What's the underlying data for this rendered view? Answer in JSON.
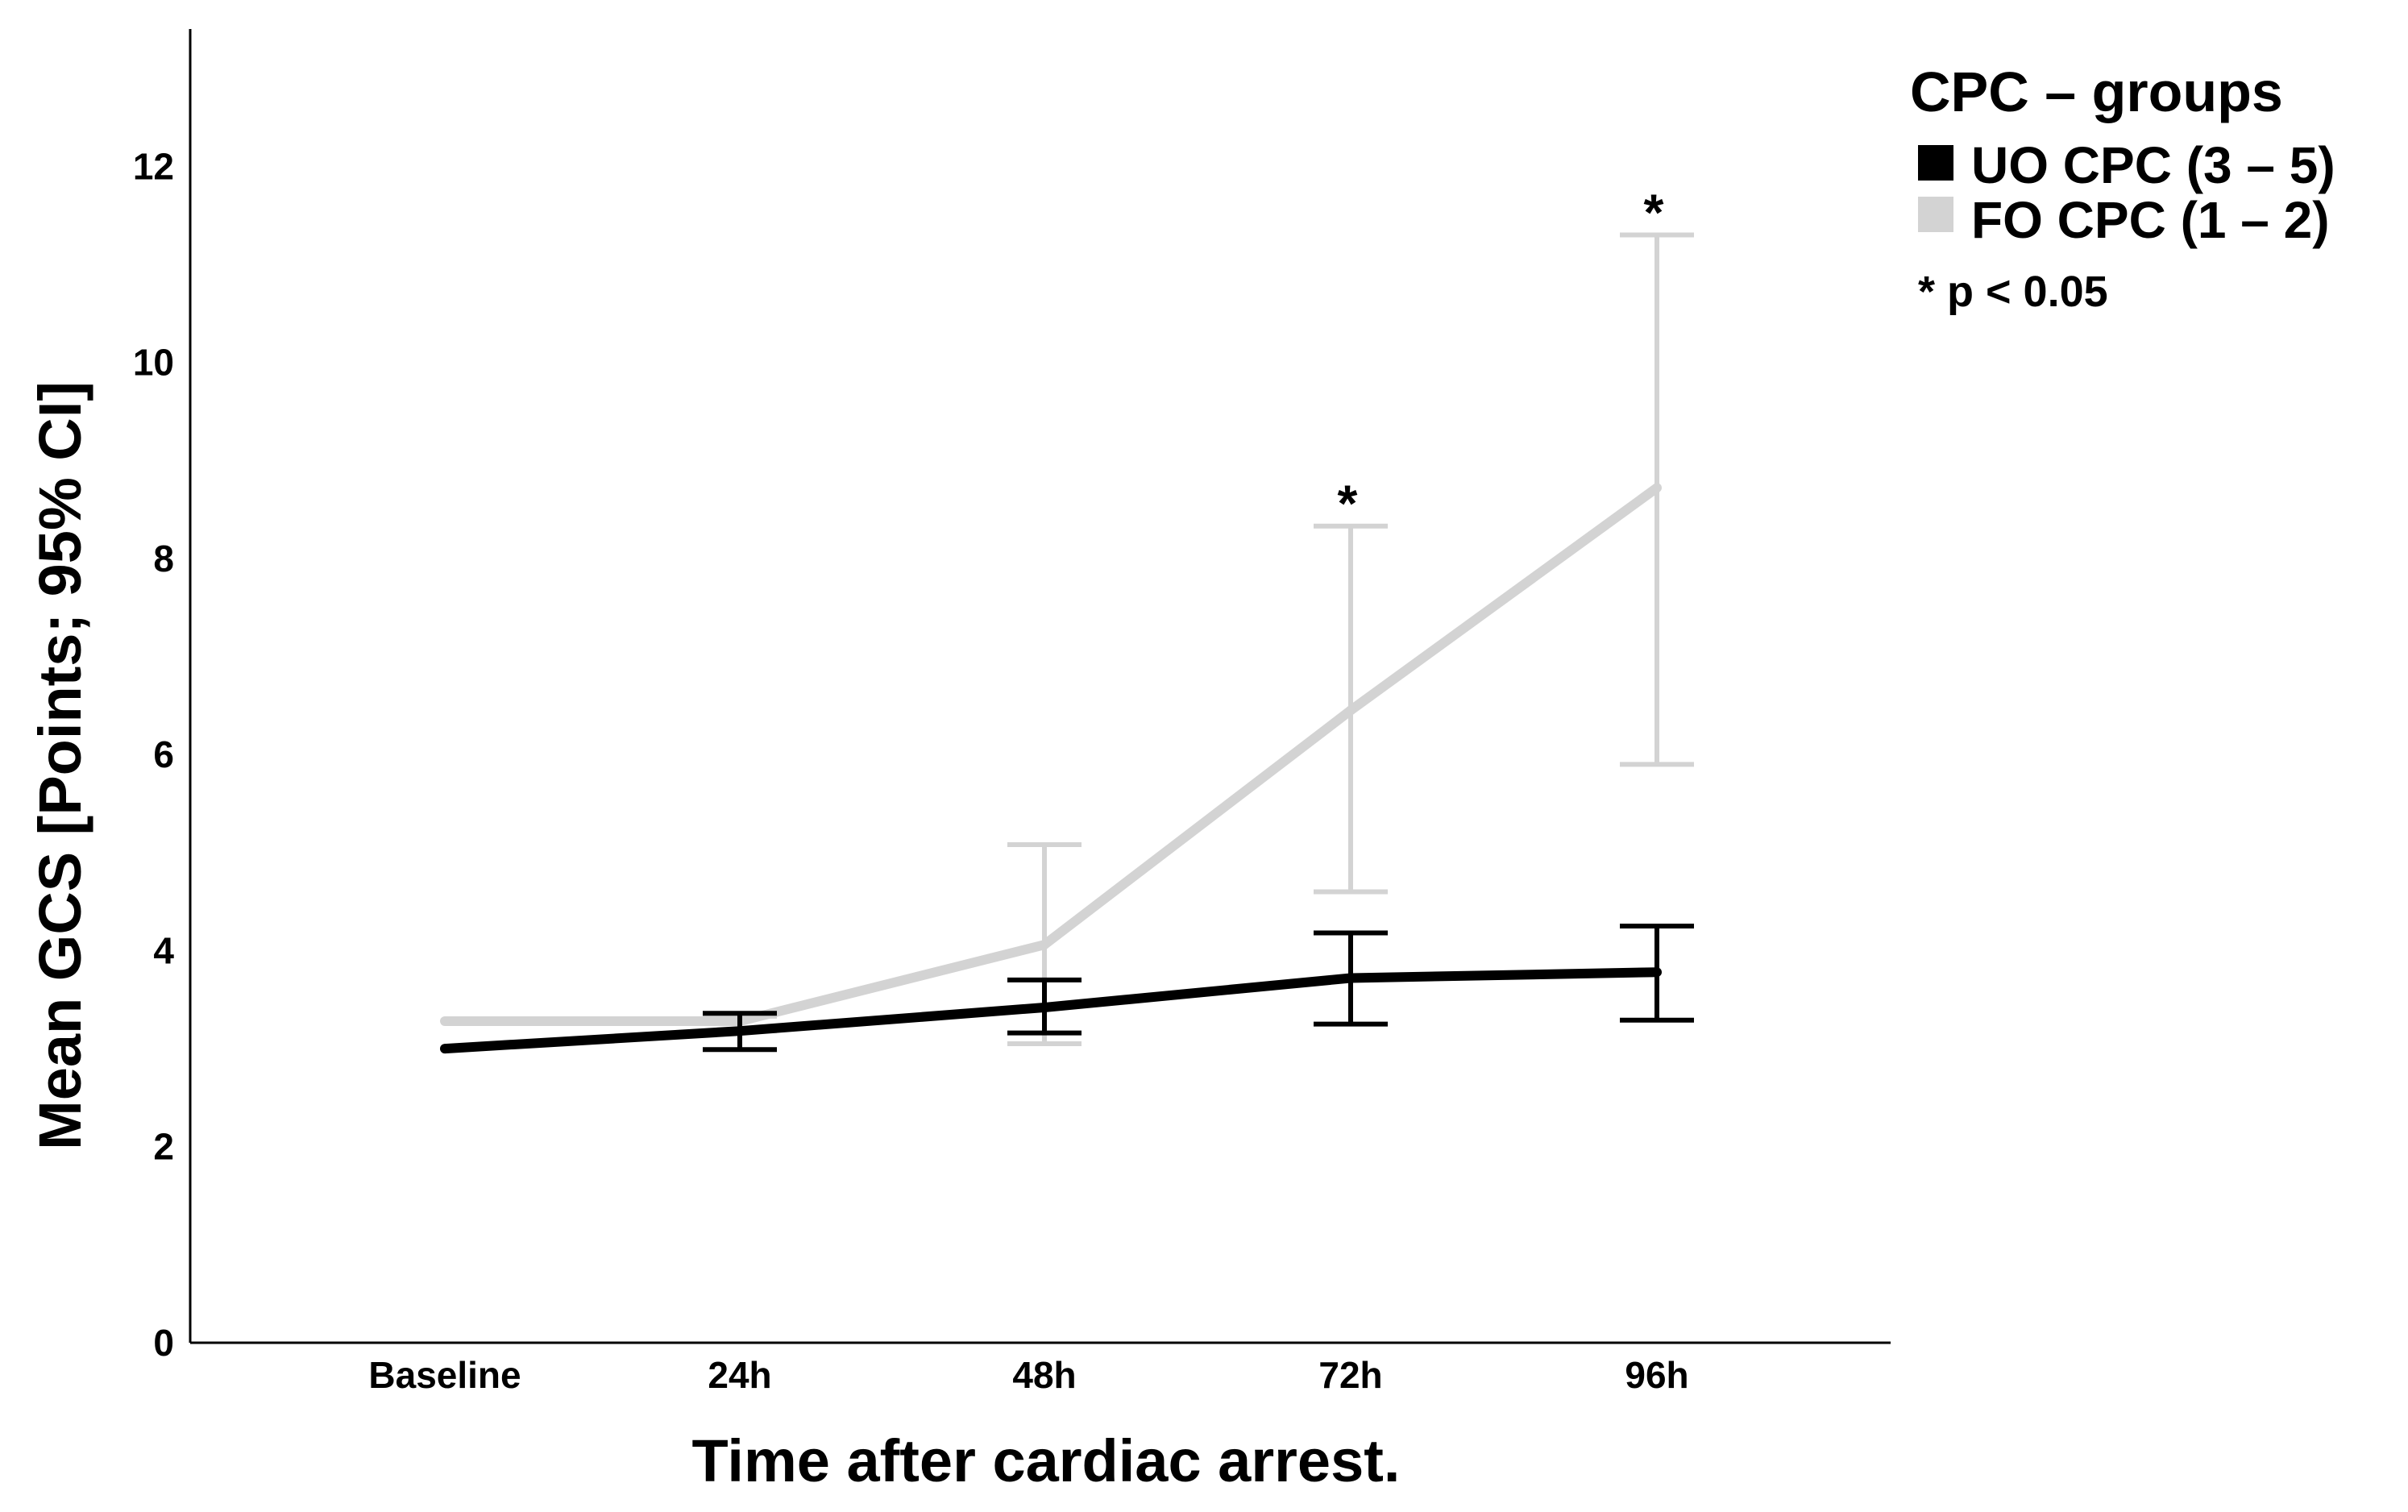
{
  "chart_data": {
    "type": "line",
    "title": "",
    "xlabel": "Time after cardiac arrest.",
    "ylabel": "Mean GCS [Points; 95% CI]",
    "categories": [
      "Baseline",
      "24h",
      "48h",
      "72h",
      "96h"
    ],
    "ylim": [
      0,
      13.4
    ],
    "yticks": [
      0,
      2,
      4,
      6,
      8,
      10,
      12
    ],
    "yticklabels": [
      "0",
      "2",
      "4",
      "6",
      "8",
      "10",
      "12"
    ],
    "grid": false,
    "legend": {
      "title": "CPC – groups",
      "placement": "top-right",
      "note": "* p < 0.05"
    },
    "series": [
      {
        "name": "UO CPC (3 – 5)",
        "color": "#000000",
        "values": [
          3.0,
          3.18,
          3.42,
          3.72,
          3.78
        ],
        "ci_low": [
          null,
          2.99,
          3.16,
          3.25,
          3.29
        ],
        "ci_high": [
          null,
          3.36,
          3.7,
          4.18,
          4.25
        ]
      },
      {
        "name": "FO CPC (1 – 2)",
        "color": "#d3d3d3",
        "values": [
          3.28,
          3.28,
          4.06,
          6.45,
          8.72
        ],
        "ci_low": [
          null,
          3.18,
          3.05,
          4.6,
          5.9
        ],
        "ci_high": [
          null,
          3.33,
          5.08,
          8.33,
          11.3
        ]
      }
    ],
    "annotations": [
      {
        "category": "72h",
        "text": "*"
      },
      {
        "category": "96h",
        "text": "*"
      }
    ]
  }
}
